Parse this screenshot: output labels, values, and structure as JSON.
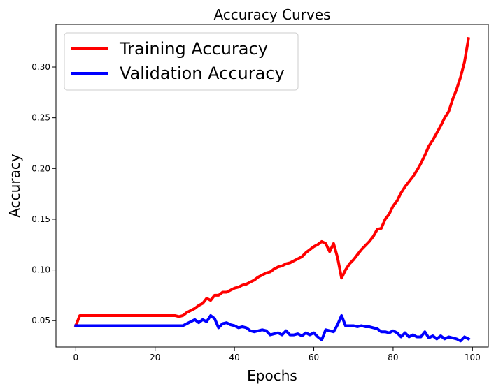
{
  "chart_data": {
    "type": "line",
    "title": "Accuracy Curves",
    "xlabel": "Epochs",
    "ylabel": "Accuracy",
    "xlim": [
      -5,
      104
    ],
    "ylim": [
      0.024,
      0.342
    ],
    "xticks": [
      0,
      20,
      40,
      60,
      80,
      100
    ],
    "yticks": [
      0.05,
      0.1,
      0.15,
      0.2,
      0.25,
      0.3
    ],
    "ytick_labels": [
      "0.05",
      "0.10",
      "0.15",
      "0.20",
      "0.25",
      "0.30"
    ],
    "grid": false,
    "legend_position": "upper-left",
    "series": [
      {
        "name": "Training Accuracy",
        "color": "#ff0000",
        "values": [
          0.045,
          0.055,
          0.055,
          0.055,
          0.055,
          0.055,
          0.055,
          0.055,
          0.055,
          0.055,
          0.055,
          0.055,
          0.055,
          0.055,
          0.055,
          0.055,
          0.055,
          0.055,
          0.055,
          0.055,
          0.055,
          0.055,
          0.055,
          0.055,
          0.055,
          0.055,
          0.054,
          0.055,
          0.058,
          0.06,
          0.062,
          0.065,
          0.067,
          0.072,
          0.07,
          0.075,
          0.075,
          0.078,
          0.078,
          0.08,
          0.082,
          0.083,
          0.085,
          0.086,
          0.088,
          0.09,
          0.093,
          0.095,
          0.097,
          0.098,
          0.101,
          0.103,
          0.104,
          0.106,
          0.107,
          0.109,
          0.111,
          0.113,
          0.117,
          0.12,
          0.123,
          0.125,
          0.128,
          0.126,
          0.118,
          0.126,
          0.112,
          0.092,
          0.1,
          0.106,
          0.11,
          0.115,
          0.12,
          0.124,
          0.128,
          0.133,
          0.14,
          0.141,
          0.15,
          0.155,
          0.163,
          0.168,
          0.176,
          0.182,
          0.187,
          0.192,
          0.198,
          0.205,
          0.213,
          0.222,
          0.228,
          0.235,
          0.242,
          0.25,
          0.256,
          0.268,
          0.278,
          0.29,
          0.305,
          0.328
        ]
      },
      {
        "name": "Validation Accuracy",
        "color": "#0000ff",
        "values": [
          0.045,
          0.045,
          0.045,
          0.045,
          0.045,
          0.045,
          0.045,
          0.045,
          0.045,
          0.045,
          0.045,
          0.045,
          0.045,
          0.045,
          0.045,
          0.045,
          0.045,
          0.045,
          0.045,
          0.045,
          0.045,
          0.045,
          0.045,
          0.045,
          0.045,
          0.045,
          0.045,
          0.045,
          0.047,
          0.049,
          0.051,
          0.048,
          0.051,
          0.049,
          0.055,
          0.052,
          0.043,
          0.047,
          0.048,
          0.046,
          0.045,
          0.043,
          0.044,
          0.043,
          0.04,
          0.039,
          0.04,
          0.041,
          0.04,
          0.036,
          0.037,
          0.038,
          0.036,
          0.04,
          0.036,
          0.036,
          0.037,
          0.035,
          0.038,
          0.036,
          0.038,
          0.034,
          0.031,
          0.041,
          0.04,
          0.039,
          0.046,
          0.055,
          0.045,
          0.045,
          0.045,
          0.044,
          0.045,
          0.044,
          0.044,
          0.043,
          0.042,
          0.039,
          0.039,
          0.038,
          0.04,
          0.038,
          0.034,
          0.038,
          0.034,
          0.036,
          0.034,
          0.034,
          0.039,
          0.033,
          0.035,
          0.032,
          0.035,
          0.032,
          0.034,
          0.033,
          0.032,
          0.03,
          0.034,
          0.032
        ]
      }
    ]
  }
}
